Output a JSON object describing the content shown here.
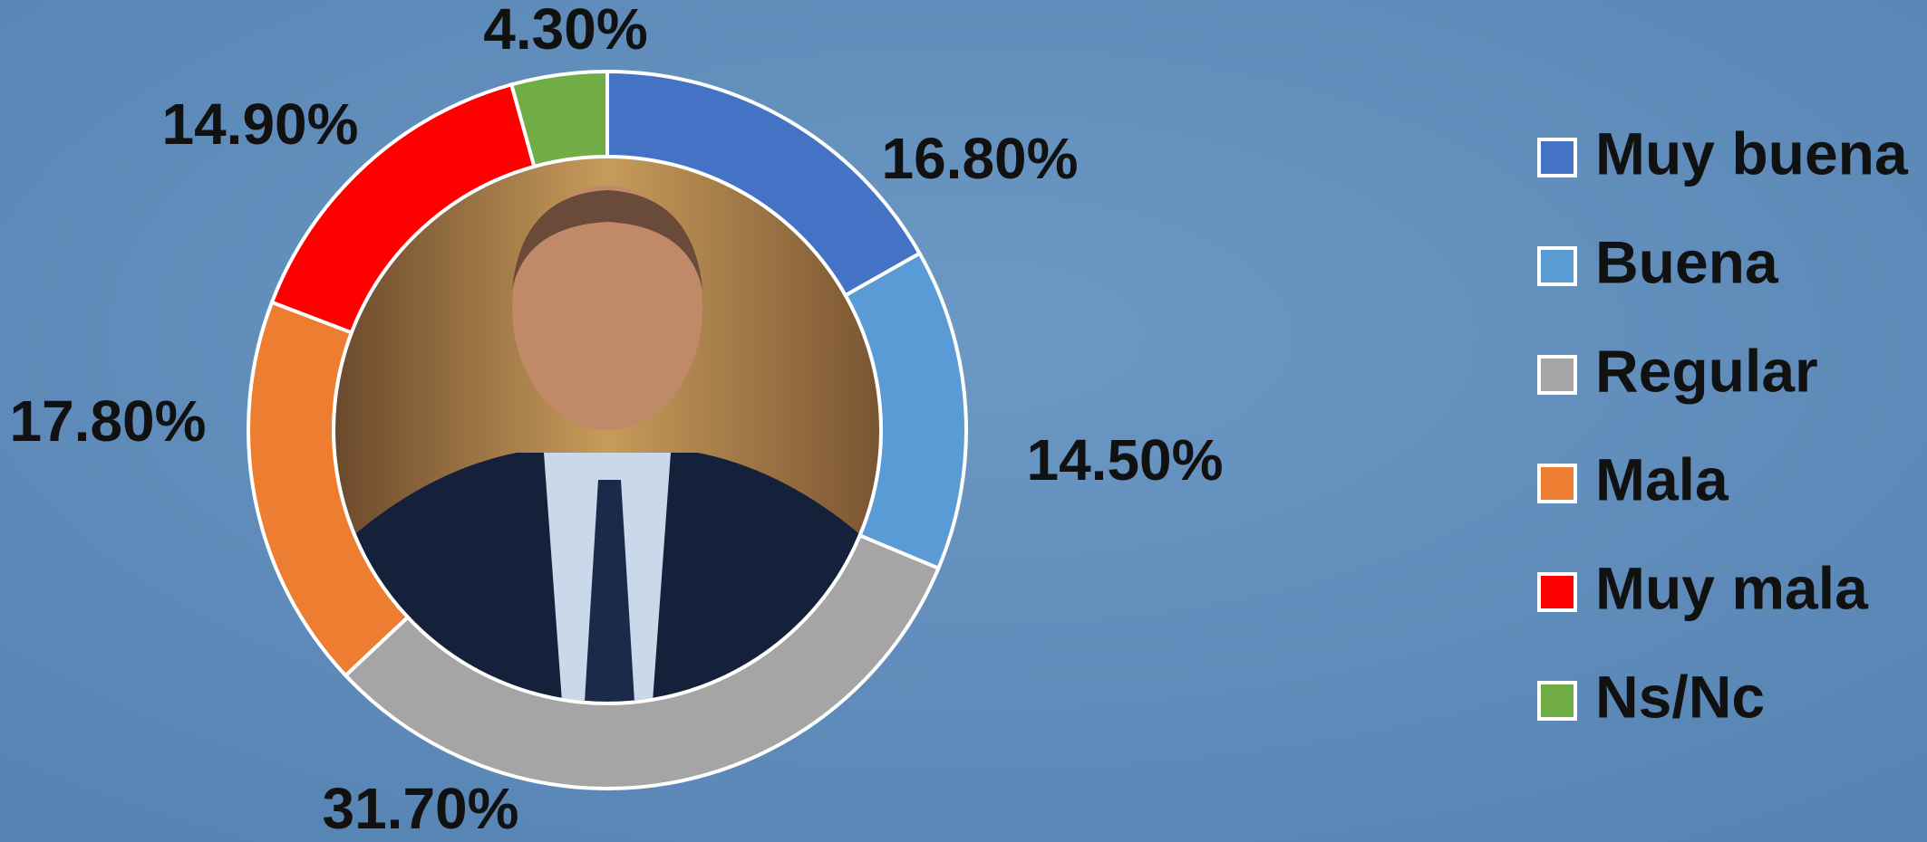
{
  "chart_data": {
    "type": "donut",
    "categories": [
      "Muy buena",
      "Buena",
      "Regular",
      "Mala",
      "Muy mala",
      "Ns/Nc"
    ],
    "values": [
      16.8,
      14.5,
      31.7,
      17.8,
      14.9,
      4.3
    ],
    "value_labels": [
      "16.80%",
      "14.50%",
      "31.70%",
      "17.80%",
      "14.90%",
      "4.30%"
    ],
    "colors": [
      "#4472c4",
      "#5b9bd5",
      "#a5a5a5",
      "#ed7d31",
      "#ff0000",
      "#70ad47"
    ],
    "legend": "right"
  }
}
